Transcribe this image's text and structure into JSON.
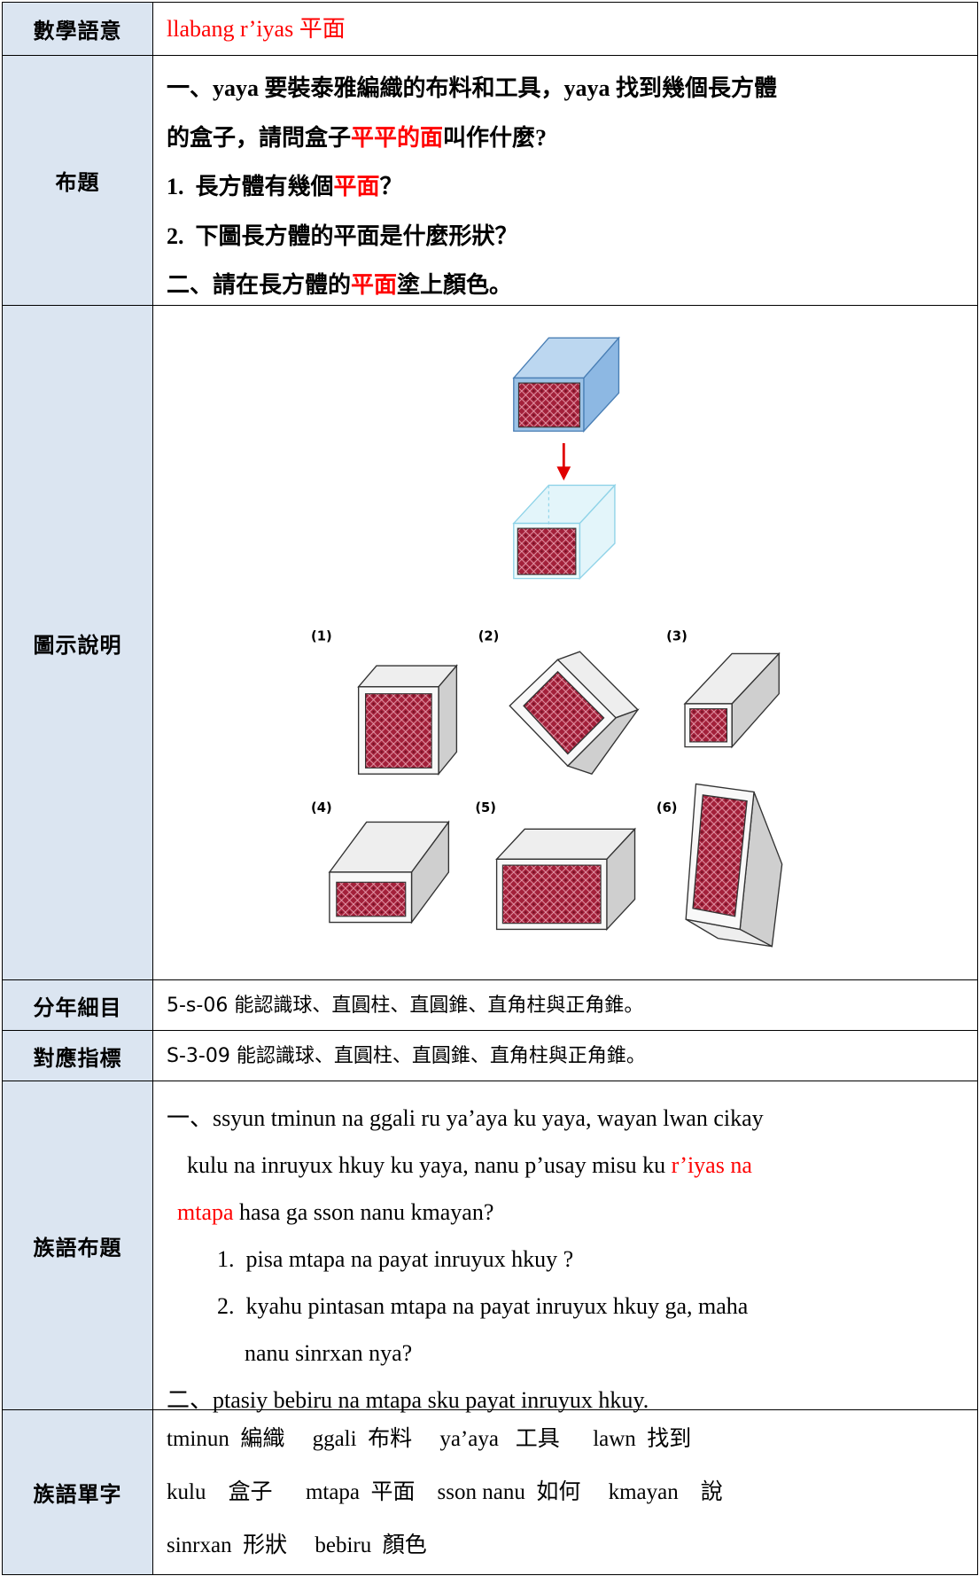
{
  "table": {
    "rows": [
      {
        "label": "數學語意",
        "lines": [
          [
            {
              "text": "llabang r’iyas 平面",
              "color": "#ff0000"
            }
          ]
        ]
      },
      {
        "label": "布題",
        "lines": [
          [
            {
              "text": "一、yaya 要裝泰雅編織的布料和工具，yaya 找到幾個長方體"
            }
          ],
          [
            {
              "text": "的盒子，請問盒子"
            },
            {
              "text": "平平的面",
              "color": "#ff0000"
            },
            {
              "text": "叫作什麼?"
            }
          ],
          [
            {
              "text": "1.  長方體有幾個"
            },
            {
              "text": "平面",
              "color": "#ff0000"
            },
            {
              "text": "？"
            }
          ],
          [
            {
              "text": "2.  下圖長方體的平面是什麼形狀？"
            }
          ],
          [
            {
              "text": "二、請在長方體的"
            },
            {
              "text": "平面",
              "color": "#ff0000"
            },
            {
              "text": "塗上顏色。"
            }
          ]
        ]
      },
      {
        "label": "圖示說明",
        "figure": {
          "labels": [
            "(1)",
            "(2)",
            "(3)",
            "(4)",
            "(5)",
            "(6)"
          ]
        }
      },
      {
        "label": "分年細目",
        "lines": [
          [
            {
              "text": "5-s-06 能認識球、直圓柱、直圓錐、直角柱與正角錐。"
            }
          ]
        ]
      },
      {
        "label": "對應指標",
        "lines": [
          [
            {
              "text": "S-3-09 能認識球、直圓柱、直圓錐、直角柱與正角錐。"
            }
          ]
        ]
      },
      {
        "label": "族語布題",
        "lines": [
          [
            {
              "text": "一、ssyun tminun na ggali ru ya’aya ku yaya, wayan lwan cikay"
            }
          ],
          [
            {
              "text": "kulu na inruyux hkuy ku yaya, nanu p’usay misu ku "
            },
            {
              "text": "r’iyas na",
              "color": "#ff0000"
            }
          ],
          [
            {
              "text": "mtapa",
              "color": "#ff0000"
            },
            {
              "text": " hasa ga sson nanu kmayan?"
            }
          ],
          [
            {
              "text": "1.  pisa mtapa na payat inruyux hkuy ?"
            }
          ],
          [
            {
              "text": "2.  kyahu pintasan mtapa na payat inruyux hkuy ga, maha"
            }
          ],
          [
            {
              "text": "nanu sinrxan nya?"
            }
          ],
          [
            {
              "text": "二、ptasiy bebiru na mtapa sku payat inruyux hkuy."
            }
          ]
        ]
      },
      {
        "label": "族語單字",
        "lines": [
          [
            {
              "text": "tminun  編織     ggali  布料     ya’aya   工具      lawn  找到"
            }
          ],
          [
            {
              "text": "kulu    盒子      mtapa  平面    sson nanu  如何     kmayan    說"
            }
          ],
          [
            {
              "text": "sinrxan  形狀     bebiru  顏色"
            }
          ]
        ]
      }
    ]
  }
}
